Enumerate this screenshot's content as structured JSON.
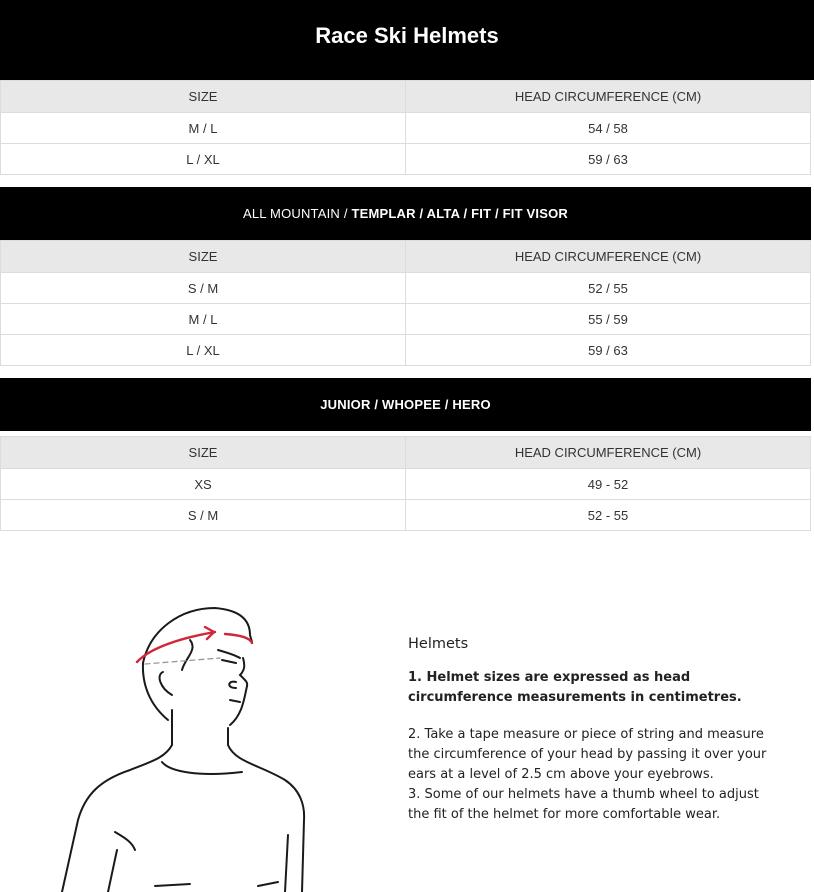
{
  "title": "Race Ski Helmets",
  "columns": {
    "size": "SIZE",
    "head": "HEAD CIRCUMFERENCE (CM)"
  },
  "tables": [
    {
      "rows": [
        {
          "size": "M / L",
          "head": "54 / 58"
        },
        {
          "size": "L / XL",
          "head": "59 / 63"
        }
      ]
    },
    {
      "heading_normal": "ALL MOUNTAIN / ",
      "heading_bold": "TEMPLAR / ALTA / FIT / FIT VISOR",
      "rows": [
        {
          "size": "S / M",
          "head": "52 / 55"
        },
        {
          "size": "M / L",
          "head": "55 / 59"
        },
        {
          "size": "L / XL",
          "head": "59 / 63"
        }
      ]
    },
    {
      "heading_bold": "JUNIOR / WHOPEE / HERO",
      "rows": [
        {
          "size": "XS",
          "head": "49 - 52"
        },
        {
          "size": "S / M",
          "head": "52 - 55"
        }
      ]
    }
  ],
  "guide": {
    "heading": "Helmets",
    "step1": "1. Helmet sizes are expressed as head circumference measurements in centimetres.",
    "step2": "2. Take a tape measure or piece of string and measure the circumference of your head by passing it over your ears at a level of 2.5 cm above your eyebrows.",
    "step3": "3. Some of our helmets have a thumb wheel to adjust the fit of the helmet for more comfortable wear."
  },
  "colors": {
    "tape": "#d0263a"
  }
}
